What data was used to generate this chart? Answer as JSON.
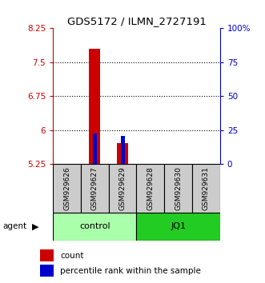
{
  "title": "GDS5172 / ILMN_2727191",
  "samples": [
    "GSM929626",
    "GSM929627",
    "GSM929629",
    "GSM929628",
    "GSM929630",
    "GSM929631"
  ],
  "red_values": [
    5.25,
    7.8,
    5.72,
    5.25,
    5.25,
    5.25
  ],
  "blue_values": [
    5.25,
    5.93,
    5.87,
    5.25,
    5.25,
    5.25
  ],
  "red_base": 5.25,
  "ylim_left": [
    5.25,
    8.25
  ],
  "ylim_right": [
    0,
    100
  ],
  "yticks_left": [
    5.25,
    6.0,
    6.75,
    7.5,
    8.25
  ],
  "yticks_right": [
    0,
    25,
    50,
    75,
    100
  ],
  "ytick_labels_left": [
    "5.25",
    "6",
    "6.75",
    "7.5",
    "8.25"
  ],
  "ytick_labels_right": [
    "0",
    "25",
    "50",
    "75",
    "100%"
  ],
  "groups": [
    {
      "label": "control",
      "indices": [
        0,
        1,
        2
      ],
      "color": "#aaffaa"
    },
    {
      "label": "JQ1",
      "indices": [
        3,
        4,
        5
      ],
      "color": "#22cc22"
    }
  ],
  "bar_width": 0.4,
  "red_color": "#cc0000",
  "blue_color": "#0000cc",
  "sample_box_color": "#cccccc",
  "dotted_yticks": [
    6.0,
    6.75,
    7.5
  ],
  "legend_items": [
    {
      "label": "count",
      "color": "#cc0000"
    },
    {
      "label": "percentile rank within the sample",
      "color": "#0000cc"
    }
  ]
}
